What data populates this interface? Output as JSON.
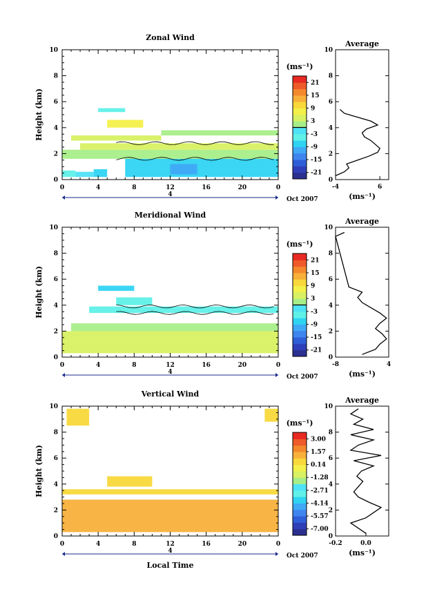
{
  "figure": {
    "xlabel_bottom": "Local Time",
    "date_label": "Oct 2007",
    "day_label": "4",
    "cbar_unit": "(ms⁻¹)",
    "avg_unit": "(ms⁻¹)",
    "avg_title": "Average"
  },
  "chart_data": [
    {
      "type": "heatmap",
      "title": "Zonal Wind",
      "ylabel": "Height (km)",
      "xlim": [
        0,
        24
      ],
      "ylim": [
        0,
        10
      ],
      "xticks": [
        "0",
        "4",
        "8",
        "12",
        "16",
        "20",
        "0"
      ],
      "yticks": [
        "0",
        "2",
        "4",
        "6",
        "8",
        "10"
      ],
      "colorbar_ticks": [
        "21",
        "15",
        "9",
        "3",
        "-3",
        "-9",
        "-15",
        "-21"
      ],
      "colorbar_range": [
        -24,
        24
      ],
      "zero_contour": true,
      "regions": [
        {
          "x": [
            0,
            1.5
          ],
          "y": [
            0.2,
            0.7
          ],
          "value": -6
        },
        {
          "x": [
            1.5,
            3.5
          ],
          "y": [
            0.2,
            0.6
          ],
          "value": -2
        },
        {
          "x": [
            3.5,
            5
          ],
          "y": [
            0.2,
            0.8
          ],
          "value": -8
        },
        {
          "x": [
            7,
            24
          ],
          "y": [
            0.2,
            1.6
          ],
          "value": -7
        },
        {
          "x": [
            12,
            15
          ],
          "y": [
            0.4,
            1.2
          ],
          "value": -12
        },
        {
          "x": [
            0,
            24
          ],
          "y": [
            1.6,
            2.3
          ],
          "value": 2
        },
        {
          "x": [
            2,
            24
          ],
          "y": [
            2.3,
            2.8
          ],
          "value": 5
        },
        {
          "x": [
            1,
            11
          ],
          "y": [
            3.0,
            3.4
          ],
          "value": 4
        },
        {
          "x": [
            11,
            24
          ],
          "y": [
            3.4,
            3.8
          ],
          "value": 2
        },
        {
          "x": [
            5,
            9
          ],
          "y": [
            4.0,
            4.6
          ],
          "value": 6
        },
        {
          "x": [
            4,
            7
          ],
          "y": [
            5.2,
            5.5
          ],
          "value": -6
        }
      ],
      "average_profile": {
        "xlim": [
          -4,
          8
        ],
        "xticks": [
          "-4",
          "6"
        ],
        "height": [
          0.3,
          0.6,
          0.9,
          1.2,
          1.5,
          1.8,
          2.1,
          2.4,
          2.7,
          3.0,
          3.3,
          3.6,
          3.9,
          4.2,
          4.5,
          4.8,
          5.1,
          5.4
        ],
        "value": [
          -4,
          -2,
          -1,
          -1.5,
          1,
          3.5,
          5.5,
          6,
          5,
          4,
          2.5,
          2,
          3,
          5.5,
          4,
          1,
          -2,
          -3
        ]
      }
    },
    {
      "type": "heatmap",
      "title": "Meridional Wind",
      "ylabel": "Height (km)",
      "xlim": [
        0,
        24
      ],
      "ylim": [
        0,
        10
      ],
      "xticks": [
        "0",
        "4",
        "8",
        "12",
        "16",
        "20",
        "0"
      ],
      "yticks": [
        "0",
        "2",
        "4",
        "6",
        "8",
        "10"
      ],
      "colorbar_ticks": [
        "21",
        "15",
        "9",
        "3",
        "-3",
        "-9",
        "-15",
        "-21"
      ],
      "colorbar_range": [
        -24,
        24
      ],
      "zero_contour": true,
      "regions": [
        {
          "x": [
            0,
            24
          ],
          "y": [
            0.3,
            1.2
          ],
          "value": 3
        },
        {
          "x": [
            0,
            24
          ],
          "y": [
            1.2,
            2.0
          ],
          "value": 5
        },
        {
          "x": [
            1,
            24
          ],
          "y": [
            2.0,
            2.6
          ],
          "value": 2
        },
        {
          "x": [
            3,
            24
          ],
          "y": [
            3.4,
            3.9
          ],
          "value": -6
        },
        {
          "x": [
            6,
            10
          ],
          "y": [
            4.0,
            4.6
          ],
          "value": -5
        },
        {
          "x": [
            4,
            8
          ],
          "y": [
            5.1,
            5.5
          ],
          "value": -7
        }
      ],
      "average_profile": {
        "xlim": [
          -8,
          4
        ],
        "xticks": [
          "-8",
          "4"
        ],
        "height": [
          0.2,
          0.6,
          1.0,
          1.4,
          1.8,
          2.2,
          2.6,
          3.0,
          3.4,
          3.8,
          4.2,
          4.6,
          5.0,
          5.4,
          9.3,
          9.6
        ],
        "value": [
          -2,
          1,
          2,
          3.5,
          2.5,
          1,
          2,
          3.5,
          2,
          0,
          -2,
          -3,
          -2,
          -5,
          -8,
          -6
        ]
      }
    },
    {
      "type": "heatmap",
      "title": "Vertical Wind",
      "ylabel": "Height (km)",
      "xlabel": "Local Time",
      "xlim": [
        0,
        24
      ],
      "ylim": [
        0,
        10
      ],
      "xticks": [
        "0",
        "4",
        "8",
        "12",
        "16",
        "20",
        "0"
      ],
      "yticks": [
        "0",
        "2",
        "4",
        "6",
        "8",
        "10"
      ],
      "colorbar_ticks": [
        "3.00",
        "1.57",
        "0.14",
        "-1.28",
        "-2.71",
        "-4.14",
        "-5.57",
        "-7.00"
      ],
      "colorbar_range": [
        -7.7,
        3.7
      ],
      "zero_contour": false,
      "regions": [
        {
          "x": [
            0,
            24
          ],
          "y": [
            0.3,
            2.8
          ],
          "value": 1.0
        },
        {
          "x": [
            0,
            24
          ],
          "y": [
            3.2,
            3.6
          ],
          "value": 0.2
        },
        {
          "x": [
            5,
            10
          ],
          "y": [
            3.8,
            4.6
          ],
          "value": 0.3
        },
        {
          "x": [
            0.5,
            3
          ],
          "y": [
            8.5,
            9.8
          ],
          "value": 0.2
        },
        {
          "x": [
            22.5,
            24
          ],
          "y": [
            8.8,
            9.8
          ],
          "value": 0.3
        }
      ],
      "average_profile": {
        "xlim": [
          -0.2,
          0.15
        ],
        "xticks": [
          "-0.2",
          "0.0"
        ],
        "height": [
          0.2,
          0.6,
          1.0,
          1.4,
          1.8,
          2.2,
          2.6,
          3.0,
          3.4,
          3.8,
          4.2,
          4.6,
          5.0,
          5.4,
          5.8,
          6.2,
          6.6,
          7.0,
          7.4,
          7.8,
          8.2,
          8.6,
          9.0,
          9.4,
          9.8
        ],
        "value": [
          0.0,
          -0.05,
          -0.1,
          0.0,
          0.05,
          0.1,
          0.02,
          -0.05,
          -0.08,
          -0.05,
          -0.02,
          -0.06,
          -0.03,
          0.05,
          -0.08,
          0.1,
          -0.1,
          -0.05,
          0.05,
          -0.1,
          0.05,
          -0.08,
          -0.02,
          -0.1,
          -0.05
        ]
      }
    }
  ]
}
